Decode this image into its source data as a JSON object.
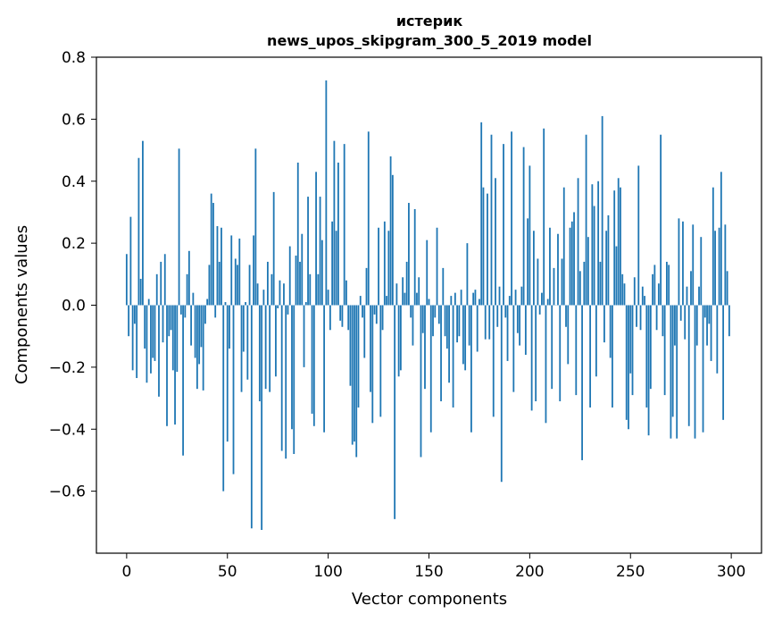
{
  "chart_data": {
    "type": "bar",
    "title_line1": "истерик",
    "title_line2": "news_upos_skipgram_300_5_2019 model",
    "xlabel": "Vector components",
    "ylabel": "Components values",
    "xlim": [
      -15,
      315
    ],
    "ylim": [
      -0.8,
      0.8
    ],
    "xticks": [
      0,
      50,
      100,
      150,
      200,
      250,
      300
    ],
    "xtick_labels": [
      "0",
      "50",
      "100",
      "150",
      "200",
      "250",
      "300"
    ],
    "yticks": [
      -0.6,
      -0.4,
      -0.2,
      0.0,
      0.2,
      0.4,
      0.6,
      0.8
    ],
    "ytick_labels": [
      "−0.6",
      "−0.4",
      "−0.2",
      "0.0",
      "0.2",
      "0.4",
      "0.6",
      "0.8"
    ],
    "bar_color": "#1f77b4",
    "grid": false,
    "values": [
      0.165,
      -0.1,
      0.285,
      -0.21,
      -0.06,
      -0.235,
      0.475,
      0.085,
      0.53,
      -0.14,
      -0.25,
      0.02,
      -0.22,
      -0.17,
      -0.18,
      0.1,
      -0.295,
      0.14,
      -0.12,
      0.165,
      -0.39,
      -0.1,
      -0.08,
      -0.21,
      -0.385,
      -0.215,
      0.505,
      -0.03,
      -0.485,
      -0.04,
      0.1,
      0.175,
      -0.13,
      0.04,
      -0.17,
      -0.27,
      -0.19,
      -0.135,
      -0.275,
      -0.06,
      0.02,
      0.13,
      0.36,
      0.33,
      -0.04,
      0.255,
      0.14,
      0.25,
      -0.6,
      0.01,
      -0.44,
      -0.14,
      0.225,
      -0.545,
      0.15,
      0.13,
      0.215,
      -0.28,
      -0.15,
      0.01,
      -0.24,
      0.13,
      -0.72,
      0.225,
      0.505,
      0.07,
      -0.31,
      -0.725,
      0.05,
      -0.27,
      0.14,
      -0.28,
      0.1,
      0.365,
      -0.23,
      -0.01,
      0.08,
      -0.47,
      0.07,
      -0.495,
      -0.03,
      0.19,
      -0.4,
      -0.48,
      0.16,
      0.46,
      0.14,
      0.23,
      -0.2,
      0.01,
      0.35,
      0.1,
      -0.35,
      -0.39,
      0.43,
      0.1,
      0.35,
      0.21,
      -0.41,
      0.725,
      0.05,
      -0.08,
      0.27,
      0.53,
      0.24,
      0.46,
      -0.05,
      -0.07,
      0.52,
      0.08,
      -0.08,
      -0.26,
      -0.45,
      -0.44,
      -0.49,
      -0.33,
      0.03,
      -0.04,
      -0.17,
      0.12,
      0.56,
      -0.28,
      -0.38,
      -0.03,
      -0.06,
      0.25,
      -0.36,
      -0.08,
      0.27,
      0.03,
      0.24,
      0.48,
      0.42,
      -0.69,
      0.07,
      -0.23,
      -0.21,
      0.09,
      0.04,
      0.14,
      0.33,
      -0.04,
      -0.13,
      0.31,
      0.04,
      0.09,
      -0.49,
      -0.09,
      -0.27,
      0.21,
      0.02,
      -0.41,
      -0.1,
      -0.04,
      0.25,
      -0.06,
      -0.31,
      0.12,
      -0.1,
      -0.14,
      -0.25,
      0.03,
      -0.33,
      0.04,
      -0.12,
      -0.1,
      0.05,
      -0.19,
      -0.21,
      0.2,
      -0.13,
      -0.41,
      0.04,
      0.05,
      -0.15,
      0.02,
      0.59,
      0.38,
      -0.11,
      0.36,
      -0.11,
      0.55,
      -0.36,
      0.41,
      -0.07,
      0.06,
      -0.57,
      0.52,
      -0.04,
      -0.18,
      0.03,
      0.56,
      -0.28,
      0.05,
      -0.09,
      -0.13,
      0.06,
      0.51,
      -0.16,
      0.28,
      0.45,
      -0.34,
      0.24,
      -0.31,
      0.15,
      -0.03,
      0.04,
      0.57,
      -0.38,
      0.02,
      0.25,
      -0.27,
      0.12,
      0.0,
      0.23,
      -0.31,
      0.15,
      0.38,
      -0.07,
      -0.19,
      0.25,
      0.27,
      0.3,
      -0.29,
      0.41,
      0.11,
      -0.5,
      0.14,
      0.55,
      0.22,
      -0.33,
      0.39,
      0.32,
      -0.23,
      0.4,
      0.14,
      0.61,
      -0.12,
      0.24,
      0.29,
      -0.17,
      -0.33,
      0.37,
      0.19,
      0.41,
      0.38,
      0.1,
      0.07,
      -0.37,
      -0.4,
      -0.22,
      -0.29,
      0.09,
      -0.07,
      0.45,
      -0.08,
      0.06,
      0.03,
      -0.33,
      -0.42,
      -0.27,
      0.1,
      0.13,
      -0.08,
      0.07,
      0.55,
      -0.1,
      -0.29,
      0.14,
      0.13,
      -0.43,
      -0.36,
      -0.13,
      -0.43,
      0.28,
      -0.05,
      0.27,
      -0.11,
      0.06,
      -0.39,
      0.11,
      0.26,
      -0.43,
      -0.13,
      0.06,
      0.22,
      -0.41,
      -0.04,
      -0.13,
      -0.06,
      -0.18,
      0.38,
      0.24,
      -0.22,
      0.25,
      0.43,
      -0.37,
      0.26,
      0.11,
      -0.1
    ]
  }
}
